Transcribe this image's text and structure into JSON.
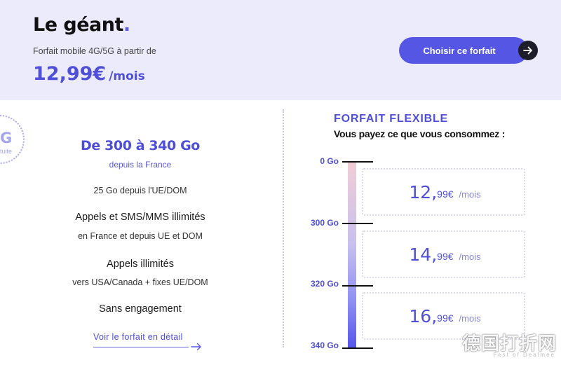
{
  "header": {
    "title": "Le géant",
    "title_dot": ".",
    "subtitle": "Forfait mobile 4G/5G à partir de",
    "price": "12,99€",
    "price_unit": "/mois",
    "cta_label": "Choisir ce forfait"
  },
  "badge": {
    "letter": "G",
    "text": "tuite"
  },
  "features": {
    "data_title": "De 300 à 340 Go",
    "data_sub": "depuis la France",
    "eu_data": "25 Go depuis l'UE/DOM",
    "calls_title": "Appels et SMS/MMS illimités",
    "calls_sub": "en France et depuis UE et DOM",
    "intl_title": "Appels illimités",
    "intl_sub": "vers USA/Canada + fixes UE/DOM",
    "commitment": "Sans engagement",
    "details_link": "Voir le forfait en détail"
  },
  "flexible": {
    "title": "FORFAIT FLEXIBLE",
    "subtitle": "Vous payez ce que vous consommez :",
    "levels": [
      "0 Go",
      "300 Go",
      "320 Go",
      "340 Go"
    ],
    "tiers": [
      {
        "int": "12,",
        "dec": "99€",
        "unit": "/mois"
      },
      {
        "int": "14,",
        "dec": "99€",
        "unit": "/mois"
      },
      {
        "int": "16,",
        "dec": "99€",
        "unit": "/mois"
      }
    ]
  },
  "watermark": {
    "text": "德国打折网",
    "sub": "Fest of Dealmee"
  },
  "colors": {
    "accent": "#5656e5",
    "header_bg": "#ecebfb",
    "dark": "#1e1e2a"
  }
}
